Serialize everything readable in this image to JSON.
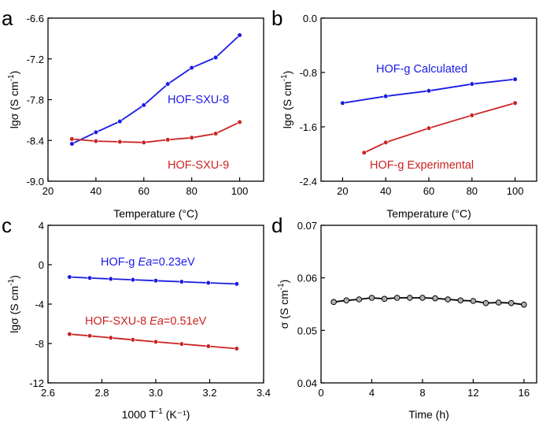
{
  "chart_data": [
    {
      "panel": "a",
      "type": "line",
      "xlabel": "Temperature (°C)",
      "ylabel": "lgσ (S cm⁻¹)",
      "xlim": [
        20,
        110
      ],
      "ylim": [
        -9.0,
        -6.6
      ],
      "xticks": [
        20,
        40,
        60,
        80,
        100
      ],
      "yticks": [
        -9.0,
        -8.4,
        -7.8,
        -7.2,
        -6.6
      ],
      "xtick_labels": [
        "20",
        "40",
        "60",
        "80",
        "100"
      ],
      "ytick_labels": [
        "-9.0",
        "-8.4",
        "-7.8",
        "-7.2",
        "-6.6"
      ],
      "series": [
        {
          "name": "HOF-SXU-8",
          "color": "#1a1ae6",
          "x": [
            30,
            40,
            50,
            60,
            70,
            80,
            90,
            100
          ],
          "y": [
            -8.45,
            -8.28,
            -8.12,
            -7.88,
            -7.57,
            -7.33,
            -7.18,
            -6.85
          ]
        },
        {
          "name": "HOF-SXU-9",
          "color": "#cc2222",
          "x": [
            30,
            40,
            50,
            60,
            70,
            80,
            90,
            100
          ],
          "y": [
            -8.38,
            -8.41,
            -8.42,
            -8.43,
            -8.39,
            -8.36,
            -8.3,
            -8.13
          ]
        }
      ]
    },
    {
      "panel": "b",
      "type": "line",
      "xlabel": "Temperature (°C)",
      "ylabel": "lgσ (S cm⁻¹)",
      "xlim": [
        10,
        110
      ],
      "ylim": [
        -2.4,
        0.0
      ],
      "xticks": [
        20,
        40,
        60,
        80,
        100
      ],
      "yticks": [
        -2.4,
        -1.6,
        -0.8,
        0.0
      ],
      "xtick_labels": [
        "20",
        "40",
        "60",
        "80",
        "100"
      ],
      "ytick_labels": [
        "-2.4",
        "-1.6",
        "-0.8",
        "0.0"
      ],
      "series": [
        {
          "name": "HOF-g Calculated",
          "color": "#1a1ae6",
          "x": [
            20,
            40,
            60,
            80,
            100
          ],
          "y": [
            -1.25,
            -1.15,
            -1.07,
            -0.97,
            -0.9
          ]
        },
        {
          "name": "HOF-g Experimental",
          "color": "#cc2222",
          "x": [
            30,
            40,
            60,
            80,
            100
          ],
          "y": [
            -1.98,
            -1.83,
            -1.62,
            -1.43,
            -1.25
          ]
        }
      ]
    },
    {
      "panel": "c",
      "type": "line",
      "xlabel": "1000 T⁻¹ (K⁻¹)",
      "ylabel": "lgσ (S cm⁻¹)",
      "xlim": [
        2.6,
        3.4
      ],
      "ylim": [
        -12,
        4
      ],
      "xticks": [
        2.6,
        2.8,
        3.0,
        3.2,
        3.4
      ],
      "yticks": [
        -12,
        -8,
        -4,
        0,
        4
      ],
      "xtick_labels": [
        "2.6",
        "2.8",
        "3.0",
        "3.2",
        "3.4"
      ],
      "ytick_labels": [
        "-12",
        "-8",
        "-4",
        "0",
        "4"
      ],
      "series": [
        {
          "name": "HOF-g",
          "ea_label": "Ea=0.23eV",
          "color": "#1a1ae6",
          "x": [
            2.68,
            2.755,
            2.833,
            2.915,
            3.0,
            3.096,
            3.195,
            3.3
          ],
          "y": [
            -1.25,
            -1.35,
            -1.44,
            -1.53,
            -1.62,
            -1.73,
            -1.84,
            -1.95
          ]
        },
        {
          "name": "HOF-SXU-8",
          "ea_label": "Ea=0.51eV",
          "color": "#cc2222",
          "x": [
            2.68,
            2.755,
            2.833,
            2.915,
            3.0,
            3.096,
            3.195,
            3.3
          ],
          "y": [
            -7.05,
            -7.22,
            -7.42,
            -7.62,
            -7.83,
            -8.05,
            -8.28,
            -8.52
          ]
        }
      ]
    },
    {
      "panel": "d",
      "type": "line",
      "xlabel": "Time (h)",
      "ylabel": "σ (S cm⁻¹)",
      "xlim": [
        0,
        17
      ],
      "ylim": [
        0.04,
        0.07
      ],
      "xticks": [
        0,
        4,
        8,
        12,
        16
      ],
      "yticks": [
        0.04,
        0.05,
        0.06,
        0.07
      ],
      "xtick_labels": [
        "0",
        "4",
        "8",
        "12",
        "16"
      ],
      "ytick_labels": [
        "0.04",
        "0.05",
        "0.06",
        "0.07"
      ],
      "series": [
        {
          "name": "σ",
          "color": "#000000",
          "x": [
            1,
            2,
            3,
            4,
            5,
            6,
            7,
            8,
            9,
            10,
            11,
            12,
            13,
            14,
            15,
            16
          ],
          "y": [
            0.0554,
            0.0557,
            0.0559,
            0.0562,
            0.056,
            0.0562,
            0.0562,
            0.0562,
            0.0561,
            0.0559,
            0.0557,
            0.0556,
            0.0552,
            0.0553,
            0.0552,
            0.0549
          ]
        }
      ]
    }
  ],
  "figure": {
    "panel_letters": [
      "a",
      "b",
      "c",
      "d"
    ],
    "annotations": {
      "a_sxu8": "HOF-SXU-8",
      "a_sxu9": "HOF-SXU-9",
      "b_calc": "HOF-g Calculated",
      "b_exp": "HOF-g Experimental",
      "c_hofg_name": "HOF-g ",
      "c_hofg_ea_var": "Ea",
      "c_hofg_ea_val": "=0.23eV",
      "c_sxu8_name": "HOF-SXU-8 ",
      "c_sxu8_ea_var": "Ea",
      "c_sxu8_ea_val": "=0.51eV"
    }
  }
}
